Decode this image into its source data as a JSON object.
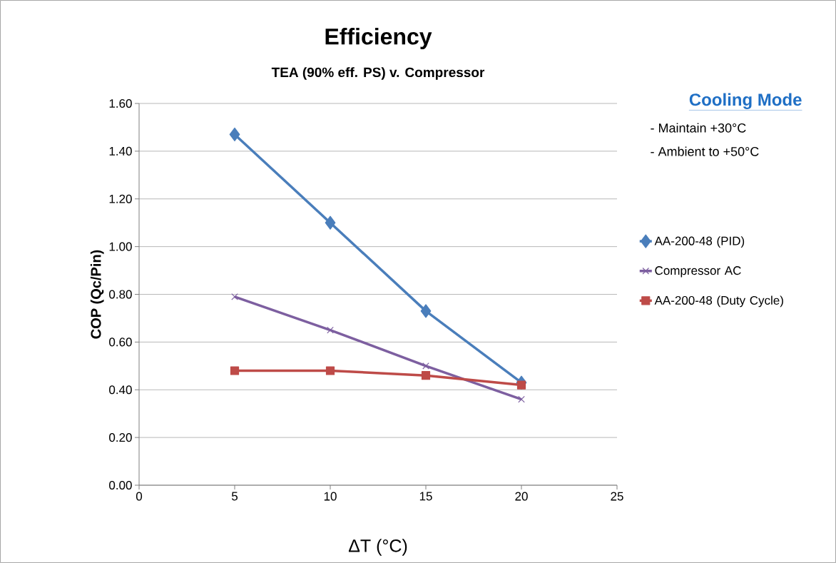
{
  "chart_data": {
    "type": "line",
    "title": "Efficiency",
    "subtitle": "TEA (90% eff. PS) v. Compressor",
    "xlabel": "ΔT (°C)",
    "ylabel": "COP (Qc/Pin)",
    "annotations": [
      "Cooling Mode",
      "- Maintain +30°C",
      "- Ambient  to +50°C"
    ],
    "x": [
      5,
      10,
      15,
      20
    ],
    "series": [
      {
        "name": "AA-200-48 (PID)",
        "color": "#4a7ebb",
        "marker": "diamond",
        "values": [
          1.47,
          1.1,
          0.73,
          0.43
        ]
      },
      {
        "name": "Compressor AC",
        "color": "#7d5fa0",
        "marker": "cross",
        "values": [
          0.79,
          0.65,
          0.5,
          0.36
        ]
      },
      {
        "name": "AA-200-48 (Duty Cycle)",
        "color": "#be4b48",
        "marker": "square",
        "values": [
          0.48,
          0.48,
          0.46,
          0.42
        ]
      }
    ],
    "xlim": [
      0,
      25
    ],
    "xticks": [
      0,
      5,
      10,
      15,
      20,
      25
    ],
    "ylim": [
      0,
      1.6
    ],
    "yticks": [
      {
        "value": 0,
        "label": "0.00"
      },
      {
        "value": 0.2,
        "label": "0.20"
      },
      {
        "value": 0.4,
        "label": "0.40"
      },
      {
        "value": 0.6,
        "label": "0.60"
      },
      {
        "value": 0.8,
        "label": "0.80"
      },
      {
        "value": 1.0,
        "label": "1.00"
      },
      {
        "value": 1.2,
        "label": "1.20"
      },
      {
        "value": 1.4,
        "label": "1.40"
      },
      {
        "value": 1.6,
        "label": "1.60"
      }
    ],
    "grid": "y",
    "legend": "right"
  }
}
